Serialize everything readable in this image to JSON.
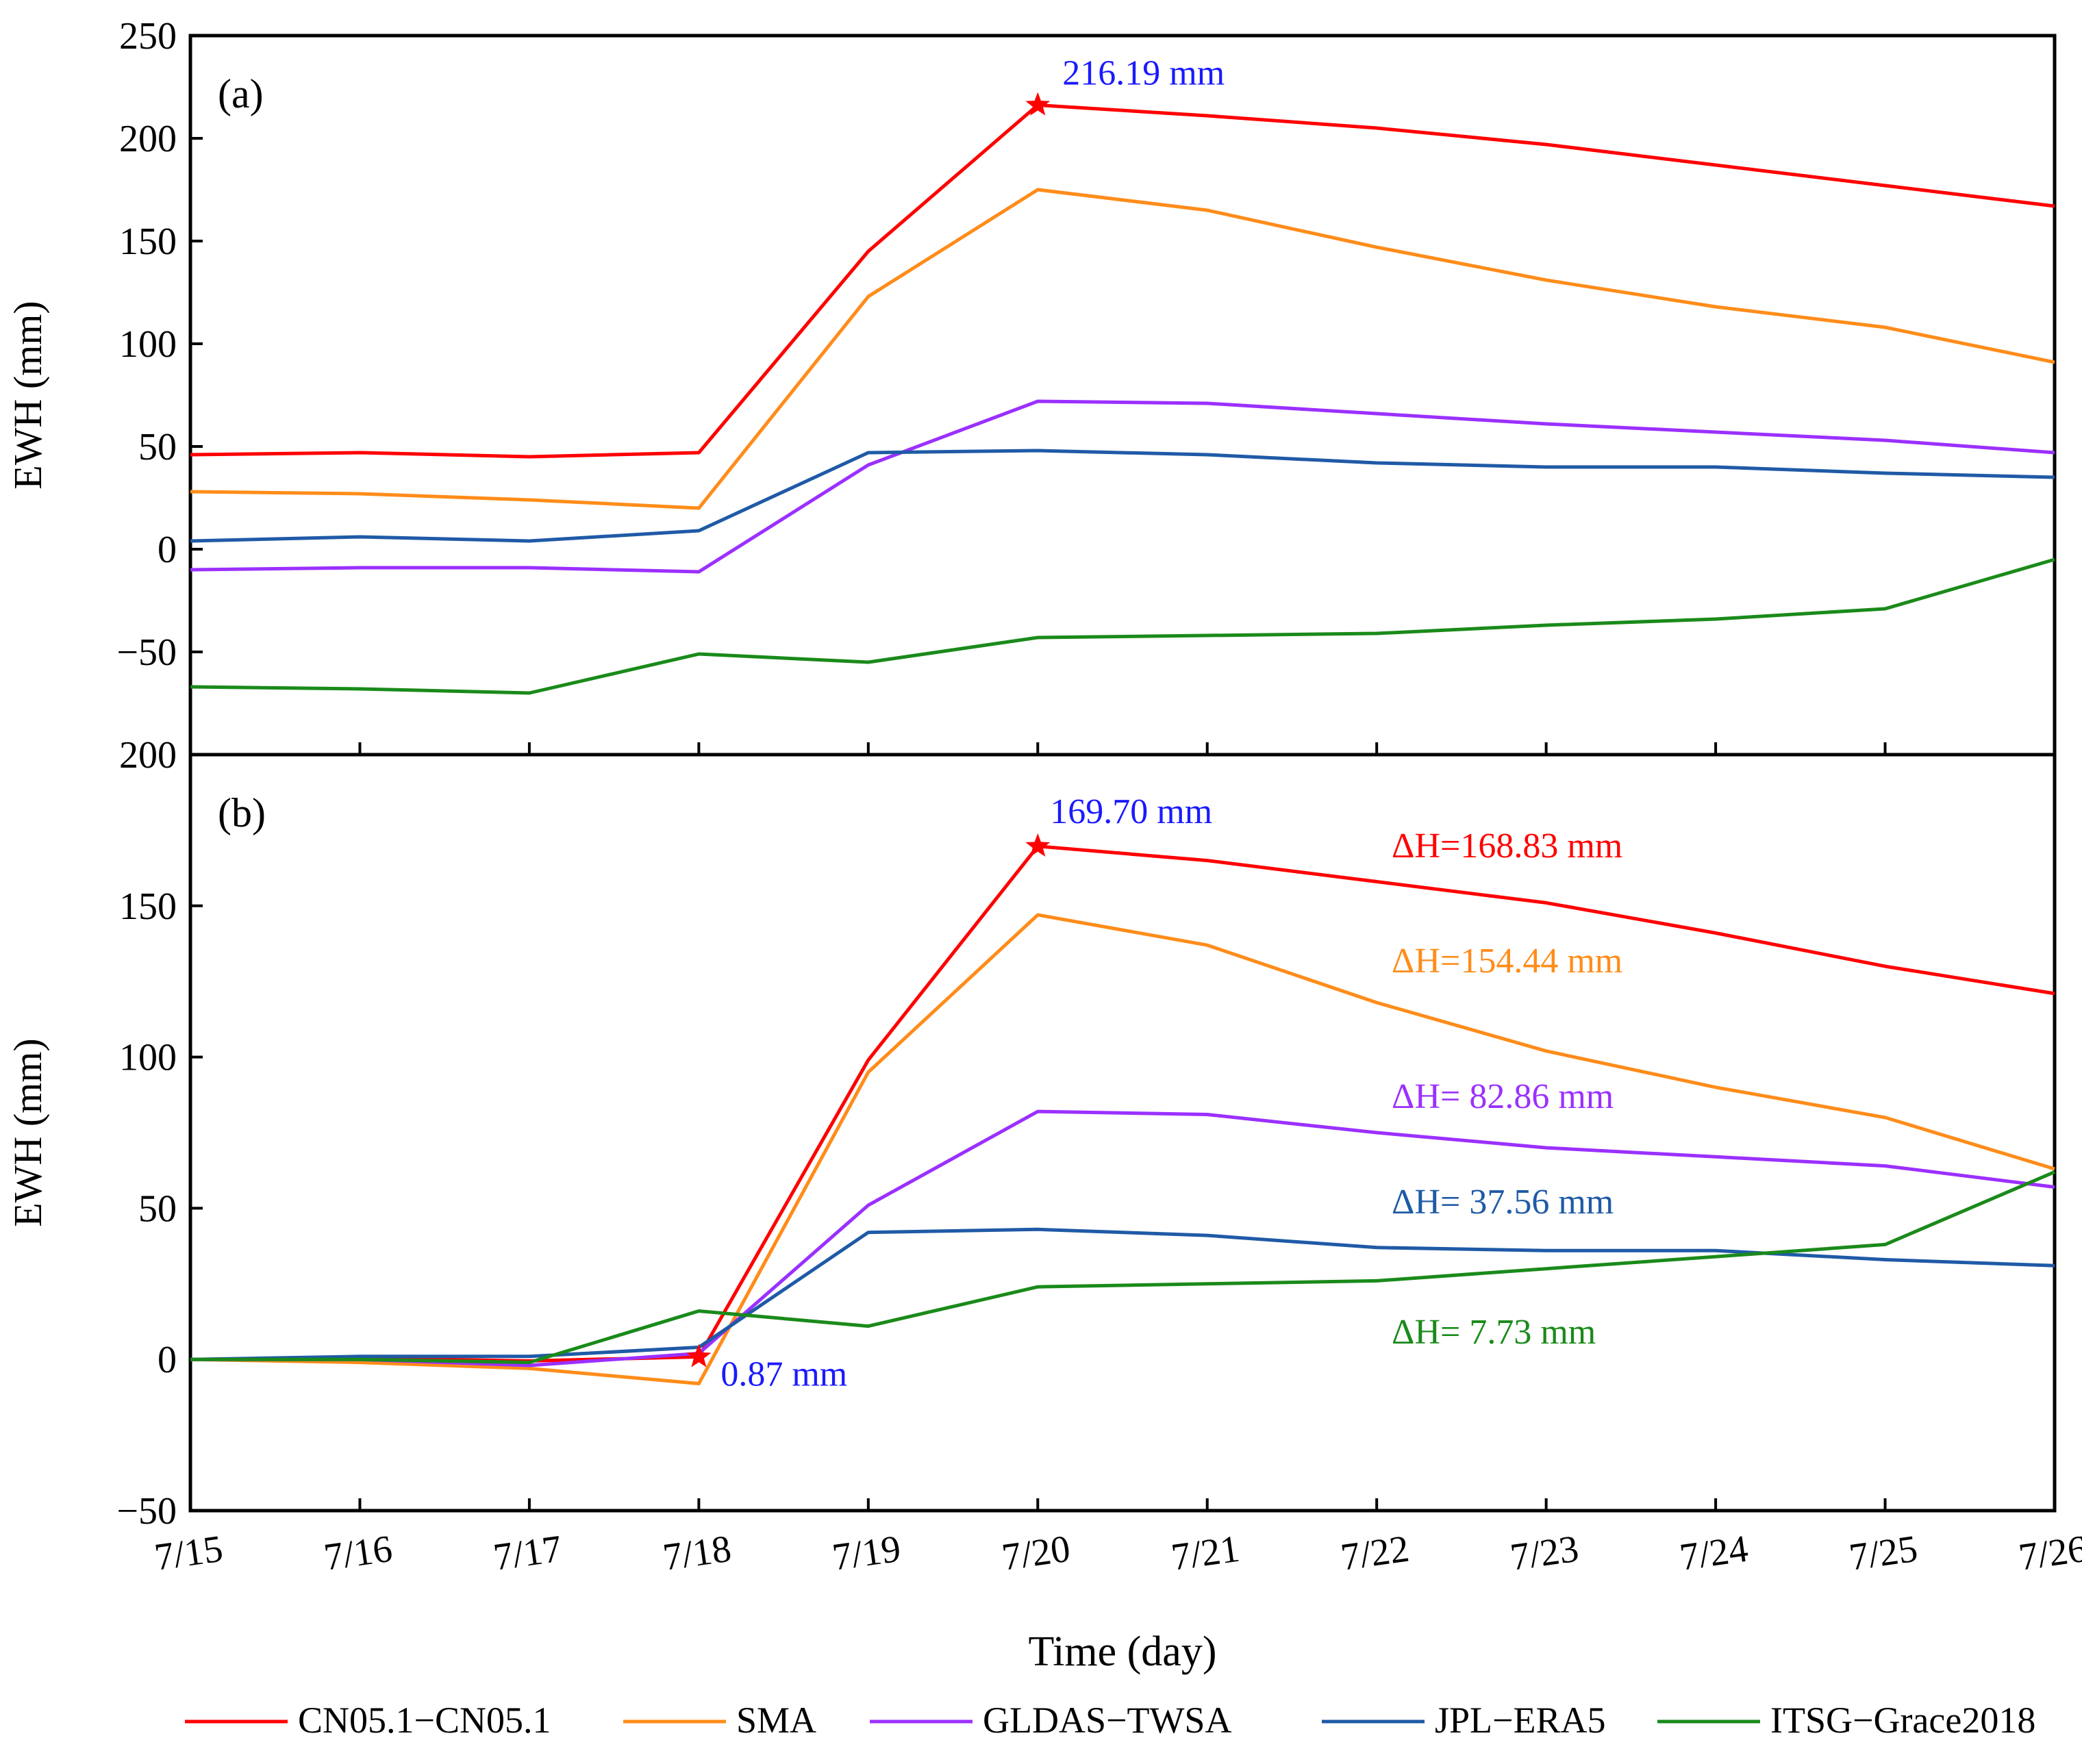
{
  "chart_data": {
    "type": "line",
    "xlabel": "Time (day)",
    "categories": [
      "7/15",
      "7/16",
      "7/17",
      "7/18",
      "7/19",
      "7/20",
      "7/21",
      "7/22",
      "7/23",
      "7/24",
      "7/25",
      "7/26"
    ],
    "series_meta": [
      {
        "name": "CN05.1−CN05.1",
        "color": "#ff0000"
      },
      {
        "name": "SMA",
        "color": "#ff8c1a"
      },
      {
        "name": "GLDAS−TWSA",
        "color": "#9b30ff"
      },
      {
        "name": "JPL−ERA5",
        "color": "#1f5aa6"
      },
      {
        "name": "ITSG−Grace2018",
        "color": "#1a8a1a"
      }
    ],
    "panels": [
      {
        "label": "(a)",
        "ylabel": "EWH (mm)",
        "ylim": [
          -100,
          250
        ],
        "yticks": [
          -50,
          0,
          50,
          100,
          150,
          200,
          250
        ],
        "ytick_labels": [
          "−50",
          "0",
          "50",
          "100",
          "150",
          "200",
          "250"
        ],
        "series": [
          {
            "name": "CN05.1−CN05.1",
            "values": [
              46,
              47,
              45,
              47,
              145,
              216.19,
              211,
              205,
              197,
              187,
              177,
              167
            ]
          },
          {
            "name": "SMA",
            "values": [
              28,
              27,
              24,
              20,
              123,
              175,
              165,
              147,
              131,
              118,
              108,
              91
            ]
          },
          {
            "name": "GLDAS−TWSA",
            "values": [
              -10,
              -9,
              -9,
              -11,
              41,
              72,
              71,
              66,
              61,
              57,
              53,
              47
            ]
          },
          {
            "name": "JPL−ERA5",
            "values": [
              4,
              6,
              4,
              9,
              47,
              48,
              46,
              42,
              40,
              40,
              37,
              35
            ]
          },
          {
            "name": "ITSG−Grace2018",
            "values": [
              -67,
              -68,
              -70,
              -51,
              -55,
              -43,
              -42,
              -41,
              -37,
              -34,
              -29,
              -5
            ]
          }
        ],
        "star_markers": [
          {
            "x": "7/20",
            "y": 216.19
          }
        ],
        "annotations": [
          {
            "text": "216.19 mm",
            "x": "7/20",
            "y": 216.19,
            "color": "#1a1aff"
          }
        ]
      },
      {
        "label": "(b)",
        "ylabel": "EWH (mm)",
        "ylim": [
          -50,
          200
        ],
        "yticks": [
          -50,
          0,
          50,
          100,
          150,
          200
        ],
        "ytick_labels": [
          "−50",
          "0",
          "50",
          "100",
          "150",
          "200"
        ],
        "series": [
          {
            "name": "CN05.1−CN05.1",
            "values": [
              0,
              0.5,
              -0.5,
              0.87,
              99,
              169.7,
              165,
              158,
              151,
              141,
              130,
              121
            ]
          },
          {
            "name": "SMA",
            "values": [
              0,
              -1,
              -3,
              -8,
              95,
              147,
              137,
              118,
              102,
              90,
              80,
              63
            ]
          },
          {
            "name": "GLDAS−TWSA",
            "values": [
              0,
              0,
              -2,
              2,
              51,
              82,
              81,
              75,
              70,
              67,
              64,
              57
            ]
          },
          {
            "name": "JPL−ERA5",
            "values": [
              0,
              1,
              1,
              4,
              42,
              43,
              41,
              37,
              36,
              36,
              33,
              31
            ]
          },
          {
            "name": "ITSG−Grace2018",
            "values": [
              0,
              0,
              -1,
              16,
              11,
              24,
              25,
              26,
              30,
              34,
              38,
              62
            ]
          }
        ],
        "star_markers": [
          {
            "x": "7/20",
            "y": 169.7
          },
          {
            "x": "7/18",
            "y": 0.87
          }
        ],
        "annotations": [
          {
            "text": "169.70 mm",
            "x": "7/20",
            "y": 169.7,
            "color": "#1a1aff"
          },
          {
            "text": "0.87 mm",
            "x": "7/18",
            "y": 0.87,
            "color": "#1a1aff"
          },
          {
            "text": "ΔH=168.83 mm",
            "color": "#ff0000"
          },
          {
            "text": "ΔH=154.44 mm",
            "color": "#ff8c1a"
          },
          {
            "text": "ΔH= 82.86 mm",
            "color": "#9b30ff"
          },
          {
            "text": "ΔH= 37.56 mm",
            "color": "#1f5aa6"
          },
          {
            "text": "ΔH= 7.73 mm",
            "color": "#1a8a1a"
          }
        ]
      }
    ],
    "legend_position": "bottom"
  }
}
